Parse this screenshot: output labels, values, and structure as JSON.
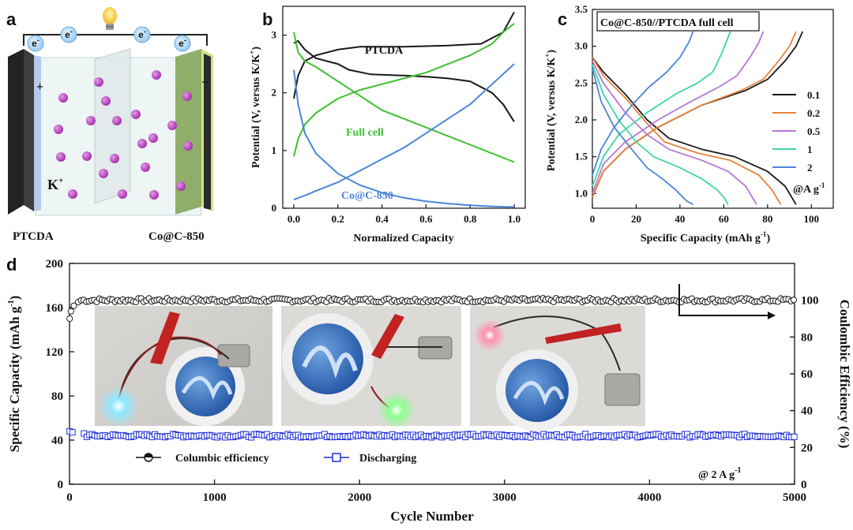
{
  "panel_a": {
    "letter": "a",
    "ion_label": "K",
    "ion_charge": "+",
    "electron_symbol": "e",
    "electron_charge": "-",
    "positive_sign": "+",
    "negative_sign": "−",
    "cathode_label": "PTCDA",
    "anode_label": "Co@C-850"
  },
  "chart_data": [
    {
      "id": "b",
      "type": "line",
      "letter": "b",
      "xlabel": "Normalized Capacity",
      "ylabel": "Potential (V, versus K/K",
      "ylabel_sup": "+",
      "ylabel_end": ")",
      "xlim": [
        -0.05,
        1.05
      ],
      "ylim": [
        0,
        3.5
      ],
      "xticks": [
        "0.0",
        "0.2",
        "0.4",
        "0.6",
        "0.8",
        "1.0"
      ],
      "yticks": [
        "0",
        "1",
        "2",
        "3"
      ],
      "series": [
        {
          "name": "PTCDA",
          "color": "#1a1a1a",
          "points": [
            [
              0,
              2.86
            ],
            [
              0.02,
              2.9
            ],
            [
              0.05,
              2.75
            ],
            [
              0.1,
              2.6
            ],
            [
              0.2,
              2.5
            ],
            [
              0.25,
              2.4
            ],
            [
              0.35,
              2.32
            ],
            [
              0.5,
              2.3
            ],
            [
              0.6,
              2.28
            ],
            [
              0.7,
              2.25
            ],
            [
              0.8,
              2.2
            ],
            [
              0.9,
              2.0
            ],
            [
              0.95,
              1.8
            ],
            [
              1.0,
              1.5
            ]
          ]
        },
        {
          "name": "PTCDA",
          "color": "#1a1a1a",
          "points": [
            [
              0,
              1.9
            ],
            [
              0.02,
              2.3
            ],
            [
              0.05,
              2.55
            ],
            [
              0.1,
              2.65
            ],
            [
              0.2,
              2.75
            ],
            [
              0.3,
              2.8
            ],
            [
              0.5,
              2.8
            ],
            [
              0.7,
              2.82
            ],
            [
              0.85,
              2.85
            ],
            [
              0.95,
              3.05
            ],
            [
              1.0,
              3.4
            ]
          ]
        },
        {
          "name": "Full cell",
          "color": "#3fbf2f",
          "points": [
            [
              0,
              3.05
            ],
            [
              0.02,
              2.7
            ],
            [
              0.05,
              2.55
            ],
            [
              0.1,
              2.45
            ],
            [
              0.2,
              2.2
            ],
            [
              0.3,
              1.95
            ],
            [
              0.4,
              1.7
            ],
            [
              0.5,
              1.55
            ],
            [
              0.6,
              1.4
            ],
            [
              0.7,
              1.25
            ],
            [
              0.8,
              1.1
            ],
            [
              0.9,
              0.95
            ],
            [
              1.0,
              0.8
            ]
          ]
        },
        {
          "name": "Full cell",
          "color": "#3fbf2f",
          "points": [
            [
              0,
              0.9
            ],
            [
              0.02,
              1.2
            ],
            [
              0.05,
              1.45
            ],
            [
              0.1,
              1.65
            ],
            [
              0.2,
              1.9
            ],
            [
              0.3,
              2.05
            ],
            [
              0.4,
              2.15
            ],
            [
              0.5,
              2.25
            ],
            [
              0.6,
              2.35
            ],
            [
              0.7,
              2.5
            ],
            [
              0.8,
              2.65
            ],
            [
              0.9,
              2.85
            ],
            [
              0.95,
              3.05
            ],
            [
              1.0,
              3.2
            ]
          ]
        },
        {
          "name": "Co@C-850",
          "color": "#4a86d8",
          "points": [
            [
              0,
              2.4
            ],
            [
              0.02,
              1.8
            ],
            [
              0.05,
              1.3
            ],
            [
              0.1,
              0.95
            ],
            [
              0.2,
              0.6
            ],
            [
              0.3,
              0.4
            ],
            [
              0.4,
              0.27
            ],
            [
              0.5,
              0.18
            ],
            [
              0.6,
              0.12
            ],
            [
              0.7,
              0.08
            ],
            [
              0.8,
              0.05
            ],
            [
              0.9,
              0.03
            ],
            [
              1.0,
              0.02
            ]
          ]
        },
        {
          "name": "Co@C-850",
          "color": "#4a86d8",
          "points": [
            [
              0,
              0.15
            ],
            [
              0.05,
              0.22
            ],
            [
              0.1,
              0.3
            ],
            [
              0.2,
              0.45
            ],
            [
              0.3,
              0.65
            ],
            [
              0.4,
              0.85
            ],
            [
              0.5,
              1.05
            ],
            [
              0.6,
              1.3
            ],
            [
              0.7,
              1.55
            ],
            [
              0.8,
              1.8
            ],
            [
              0.9,
              2.15
            ],
            [
              1.0,
              2.5
            ]
          ]
        }
      ],
      "annotations": [
        "PTCDA",
        "Full cell",
        "Co@C-850"
      ]
    },
    {
      "id": "c",
      "type": "line",
      "letter": "c",
      "title": "Co@C-850//PTCDA full cell",
      "xlabel": "Specific Capacity (mAh g",
      "xlabel_sup": "-1",
      "xlabel_end": ")",
      "ylabel": "Potential (V, versus K/K",
      "ylabel_sup": "+",
      "ylabel_end": ")",
      "xlim": [
        0,
        110
      ],
      "ylim": [
        0.8,
        3.5
      ],
      "xticks": [
        "0",
        "20",
        "40",
        "60",
        "80",
        "100"
      ],
      "yticks": [
        "1.0",
        "1.5",
        "2.0",
        "2.5",
        "3.0",
        "3.5"
      ],
      "unit_note": "@A g",
      "unit_note_sup": "-1",
      "series": [
        {
          "name": "0.1",
          "color": "#1a1a1a",
          "charge": [
            [
              0,
              0.95
            ],
            [
              5,
              1.3
            ],
            [
              15,
              1.6
            ],
            [
              30,
              1.9
            ],
            [
              50,
              2.2
            ],
            [
              70,
              2.4
            ],
            [
              80,
              2.55
            ],
            [
              88,
              2.8
            ],
            [
              93,
              3.0
            ],
            [
              96,
              3.2
            ]
          ],
          "discharge": [
            [
              0,
              2.85
            ],
            [
              5,
              2.65
            ],
            [
              15,
              2.35
            ],
            [
              25,
              2.0
            ],
            [
              35,
              1.75
            ],
            [
              50,
              1.6
            ],
            [
              65,
              1.5
            ],
            [
              80,
              1.3
            ],
            [
              88,
              1.1
            ],
            [
              93,
              0.85
            ]
          ]
        },
        {
          "name": "0.2",
          "color": "#e8813a",
          "charge": [
            [
              0,
              0.95
            ],
            [
              5,
              1.3
            ],
            [
              15,
              1.6
            ],
            [
              30,
              1.9
            ],
            [
              50,
              2.2
            ],
            [
              68,
              2.4
            ],
            [
              78,
              2.55
            ],
            [
              85,
              2.8
            ],
            [
              90,
              3.0
            ],
            [
              93,
              3.2
            ]
          ],
          "discharge": [
            [
              0,
              2.85
            ],
            [
              5,
              2.6
            ],
            [
              15,
              2.3
            ],
            [
              25,
              1.95
            ],
            [
              33,
              1.7
            ],
            [
              48,
              1.55
            ],
            [
              63,
              1.45
            ],
            [
              76,
              1.25
            ],
            [
              82,
              1.05
            ],
            [
              86,
              0.85
            ]
          ]
        },
        {
          "name": "0.5",
          "color": "#b877d9",
          "charge": [
            [
              0,
              1.0
            ],
            [
              5,
              1.4
            ],
            [
              15,
              1.7
            ],
            [
              30,
              2.0
            ],
            [
              45,
              2.25
            ],
            [
              58,
              2.45
            ],
            [
              66,
              2.6
            ],
            [
              72,
              2.85
            ],
            [
              76,
              3.05
            ],
            [
              78,
              3.2
            ]
          ],
          "discharge": [
            [
              0,
              2.8
            ],
            [
              5,
              2.5
            ],
            [
              15,
              2.1
            ],
            [
              25,
              1.8
            ],
            [
              35,
              1.6
            ],
            [
              50,
              1.45
            ],
            [
              62,
              1.3
            ],
            [
              70,
              1.1
            ],
            [
              73,
              0.95
            ],
            [
              75,
              0.85
            ]
          ]
        },
        {
          "name": "1",
          "color": "#3fd6a5",
          "charge": [
            [
              0,
              1.1
            ],
            [
              5,
              1.5
            ],
            [
              12,
              1.8
            ],
            [
              25,
              2.1
            ],
            [
              38,
              2.35
            ],
            [
              48,
              2.5
            ],
            [
              55,
              2.65
            ],
            [
              59,
              2.9
            ],
            [
              61,
              3.05
            ],
            [
              63,
              3.2
            ]
          ],
          "discharge": [
            [
              0,
              2.75
            ],
            [
              5,
              2.35
            ],
            [
              12,
              2.0
            ],
            [
              20,
              1.7
            ],
            [
              28,
              1.5
            ],
            [
              40,
              1.35
            ],
            [
              50,
              1.2
            ],
            [
              57,
              1.05
            ],
            [
              60,
              0.95
            ],
            [
              62,
              0.85
            ]
          ]
        },
        {
          "name": "2",
          "color": "#4a86d8",
          "charge": [
            [
              0,
              1.25
            ],
            [
              4,
              1.6
            ],
            [
              10,
              1.9
            ],
            [
              18,
              2.2
            ],
            [
              26,
              2.45
            ],
            [
              34,
              2.65
            ],
            [
              40,
              2.85
            ],
            [
              44,
              3.05
            ],
            [
              46,
              3.2
            ]
          ],
          "discharge": [
            [
              0,
              2.7
            ],
            [
              4,
              2.25
            ],
            [
              10,
              1.9
            ],
            [
              18,
              1.6
            ],
            [
              25,
              1.35
            ],
            [
              32,
              1.2
            ],
            [
              38,
              1.05
            ],
            [
              43,
              0.9
            ],
            [
              46,
              0.85
            ]
          ]
        }
      ]
    },
    {
      "id": "d",
      "type": "scatter",
      "letter": "d",
      "xlabel": "Cycle Number",
      "ylabel_left": "Specific Capacity (mAh g",
      "ylabel_left_sup": "-1",
      "ylabel_left_end": ")",
      "ylabel_right": "Coulombic Efficiency (%)",
      "xlim": [
        0,
        5000
      ],
      "ylim_left": [
        0,
        200
      ],
      "ylim_right": [
        0,
        120
      ],
      "xticks": [
        "0",
        "1000",
        "2000",
        "3000",
        "4000",
        "5000"
      ],
      "yticks_left": [
        "0",
        "40",
        "80",
        "120",
        "160",
        "200"
      ],
      "yticks_right": [
        "0",
        "20",
        "40",
        "60",
        "80",
        "100"
      ],
      "series": [
        {
          "name": "Columbic efficiency",
          "axis": "right",
          "color": "#1a1a1a",
          "start": [
            [
              1,
              90
            ],
            [
              10,
              94
            ],
            [
              30,
              97
            ],
            [
              60,
              99
            ]
          ],
          "plateau": 100
        },
        {
          "name": "Discharging",
          "axis": "left",
          "color": "#1f2fd6",
          "start": [
            [
              1,
              48
            ],
            [
              20,
              47
            ],
            [
              100,
              46
            ]
          ],
          "plateau": 44
        }
      ],
      "rate_note": "@ 2 A g",
      "rate_note_sup": "-1"
    }
  ]
}
